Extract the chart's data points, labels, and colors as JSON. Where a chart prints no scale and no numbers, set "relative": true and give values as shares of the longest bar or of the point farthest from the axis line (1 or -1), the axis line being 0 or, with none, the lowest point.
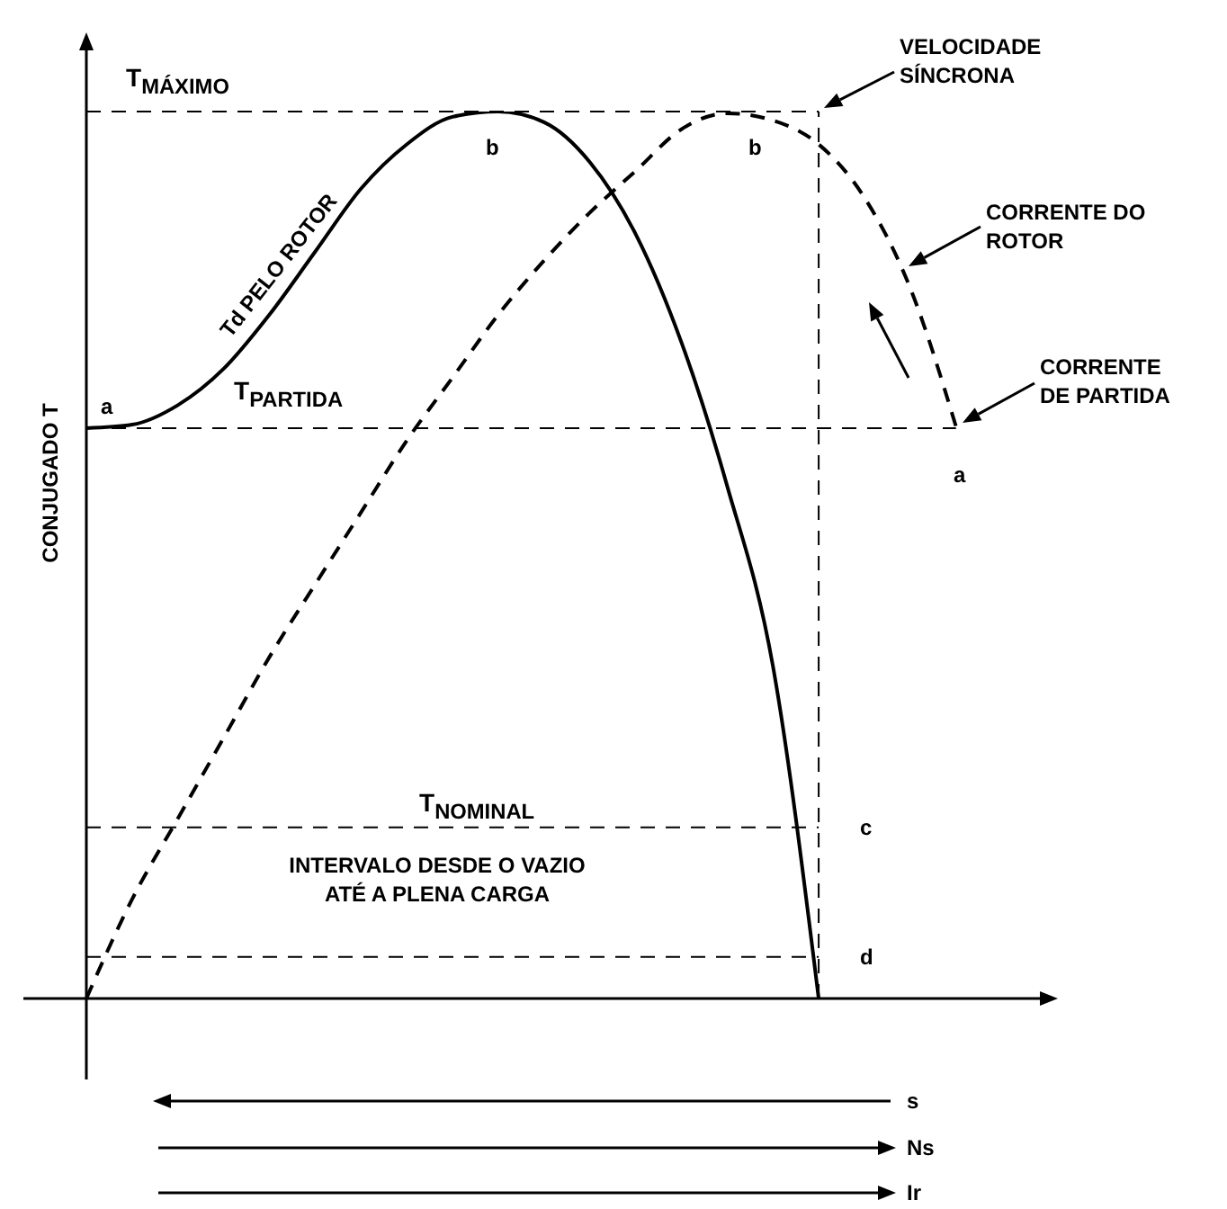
{
  "chart_data": {
    "type": "line",
    "relative": true,
    "ylabel": "CONJUGADO T",
    "marker": "none",
    "categories": [
      null,
      null,
      null,
      null,
      null,
      null,
      null,
      null,
      null,
      null,
      null,
      null,
      null,
      null,
      null,
      null,
      null,
      null,
      null,
      null,
      null
    ],
    "series": [
      {
        "name": "Td PELO ROTOR",
        "color": "#000000",
        "line_style": "solid",
        "values": [
          0.643,
          0.647,
          0.669,
          0.71,
          0.771,
          0.842,
          0.913,
          0.963,
          0.994,
          1,
          0.988,
          0.943,
          0.862,
          0.74,
          0.578,
          0.375,
          0,
          null,
          null,
          null,
          null
        ]
      },
      {
        "name": "CORRENTE DO ROTOR",
        "color": "#000000",
        "line_style": "dashed",
        "values": [
          0,
          0.112,
          0.203,
          0.294,
          0.385,
          0.467,
          0.548,
          0.629,
          0.7,
          0.771,
          0.832,
          0.886,
          0.933,
          0.98,
          0.998,
          0.99,
          0.963,
          0.903,
          0.801,
          0.645,
          null
        ]
      }
    ],
    "ref_lines": [
      {
        "axis": "y",
        "value": 1,
        "label": "T$_{MÁXIMO}$",
        "line_style": "dashed"
      },
      {
        "axis": "y",
        "value": 0.643,
        "label": "T$_{PARTIDA}$",
        "line_style": "dashed"
      },
      {
        "axis": "y",
        "value": 0.193,
        "label": "T$_{NOMINAL}$",
        "line_style": "dashed"
      },
      {
        "axis": "y",
        "value": 0.047,
        "line_style": "dashed"
      }
    ],
    "annotations": [
      "a",
      "b",
      "b",
      "a",
      "c",
      "d",
      "CORRENTE DE PARTIDA",
      "INTERVALO DESDE O VAZIO ATÉ A PLENA CARGA",
      "s",
      "Ns",
      "Ir",
      "VELOCIDADE SÍNCRONA"
    ]
  }
}
